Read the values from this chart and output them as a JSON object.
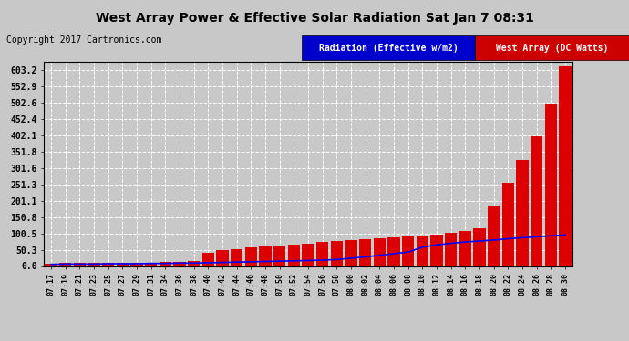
{
  "title": "West Array Power & Effective Solar Radiation Sat Jan 7 08:31",
  "copyright": "Copyright 2017 Cartronics.com",
  "background_color": "#c8c8c8",
  "plot_background": "#c8c8c8",
  "legend_radiation_label": "Radiation (Effective w/m2)",
  "legend_power_label": "West Array (DC Watts)",
  "legend_radiation_bg": "#0000cc",
  "legend_power_bg": "#cc0000",
  "bar_color": "#dd0000",
  "line_color": "#0000ff",
  "yticks": [
    0.0,
    50.3,
    100.5,
    150.8,
    201.1,
    251.3,
    301.6,
    351.8,
    402.1,
    452.4,
    502.6,
    552.9,
    603.2
  ],
  "ylim": [
    0,
    630
  ],
  "grid_color": "#ffffff",
  "time_labels": [
    "07:17",
    "07:19",
    "07:21",
    "07:23",
    "07:25",
    "07:27",
    "07:29",
    "07:31",
    "07:34",
    "07:36",
    "07:38",
    "07:40",
    "07:42",
    "07:44",
    "07:46",
    "07:48",
    "07:50",
    "07:52",
    "07:54",
    "07:56",
    "07:58",
    "08:00",
    "08:02",
    "08:04",
    "08:06",
    "08:08",
    "08:10",
    "08:12",
    "08:14",
    "08:16",
    "08:18",
    "08:20",
    "08:22",
    "08:24",
    "08:26",
    "08:28",
    "08:30"
  ],
  "bar_values": [
    8,
    9,
    10,
    9,
    10,
    11,
    10,
    11,
    13,
    14,
    16,
    40,
    48,
    52,
    57,
    60,
    63,
    67,
    70,
    73,
    76,
    80,
    82,
    85,
    87,
    90,
    93,
    98,
    103,
    108,
    115,
    185,
    255,
    325,
    400,
    500,
    615
  ],
  "line_values": [
    5,
    6,
    6,
    6,
    7,
    7,
    7,
    8,
    8,
    9,
    9,
    10,
    11,
    12,
    13,
    14,
    15,
    16,
    17,
    18,
    20,
    24,
    28,
    33,
    38,
    43,
    58,
    65,
    70,
    74,
    77,
    80,
    84,
    87,
    90,
    93,
    96
  ],
  "title_fontsize": 10,
  "copyright_fontsize": 7,
  "legend_fontsize": 7,
  "tick_fontsize": 7,
  "xtick_fontsize": 6
}
